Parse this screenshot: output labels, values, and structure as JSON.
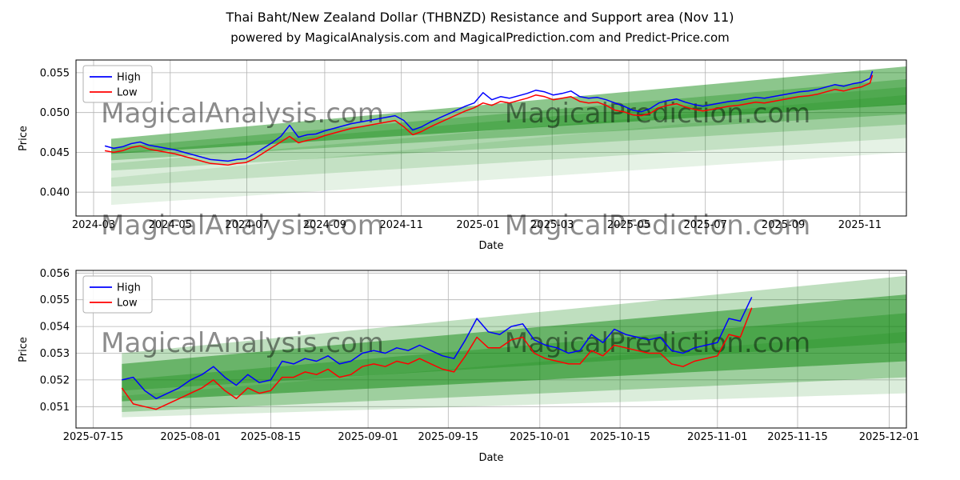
{
  "header": {
    "title": "Thai Baht/New Zealand Dollar (THBNZD) Resistance and Support area (Nov 11)",
    "subtitle": "powered by MagicalAnalysis.com and MagicalPrediction.com and Predict-Price.com"
  },
  "colors": {
    "high": "#0000ff",
    "low": "#ff0000",
    "band": "#008000",
    "grid": "#b3b3b3",
    "watermark": "#8a8a8a",
    "plot_border": "#000000"
  },
  "chart_data": [
    {
      "type": "line",
      "xlabel": "Date",
      "ylabel": "Price",
      "legend": [
        "High",
        "Low"
      ],
      "legend_position": "upper left",
      "grid": true,
      "xlim": [
        "2024-02-16",
        "2025-12-08"
      ],
      "ylim": [
        0.037,
        0.0566
      ],
      "yticks": [
        {
          "v": 0.04,
          "label": "0.040"
        },
        {
          "v": 0.045,
          "label": "0.045"
        },
        {
          "v": 0.05,
          "label": "0.050"
        },
        {
          "v": 0.055,
          "label": "0.055"
        }
      ],
      "xticks": [
        {
          "d": "2024-03-01",
          "label": "2024-03"
        },
        {
          "d": "2024-05-01",
          "label": "2024-05"
        },
        {
          "d": "2024-07-01",
          "label": "2024-07"
        },
        {
          "d": "2024-09-01",
          "label": "2024-09"
        },
        {
          "d": "2024-11-01",
          "label": "2024-11"
        },
        {
          "d": "2025-01-01",
          "label": "2025-01"
        },
        {
          "d": "2025-03-01",
          "label": "2025-03"
        },
        {
          "d": "2025-05-01",
          "label": "2025-05"
        },
        {
          "d": "2025-07-01",
          "label": "2025-07"
        },
        {
          "d": "2025-09-01",
          "label": "2025-09"
        },
        {
          "d": "2025-11-01",
          "label": "2025-11"
        }
      ],
      "x": [
        "2024-03-10",
        "2024-03-17",
        "2024-03-24",
        "2024-03-31",
        "2024-04-07",
        "2024-04-14",
        "2024-04-21",
        "2024-04-28",
        "2024-05-05",
        "2024-05-12",
        "2024-05-19",
        "2024-05-26",
        "2024-06-02",
        "2024-06-09",
        "2024-06-16",
        "2024-06-23",
        "2024-06-30",
        "2024-07-07",
        "2024-07-14",
        "2024-07-21",
        "2024-07-28",
        "2024-08-04",
        "2024-08-11",
        "2024-08-18",
        "2024-08-25",
        "2024-09-01",
        "2024-09-08",
        "2024-09-15",
        "2024-09-22",
        "2024-09-29",
        "2024-10-06",
        "2024-10-13",
        "2024-10-20",
        "2024-10-27",
        "2024-11-03",
        "2024-11-10",
        "2024-11-17",
        "2024-11-24",
        "2024-12-01",
        "2024-12-08",
        "2024-12-15",
        "2024-12-22",
        "2024-12-29",
        "2025-01-05",
        "2025-01-12",
        "2025-01-19",
        "2025-01-26",
        "2025-02-02",
        "2025-02-09",
        "2025-02-16",
        "2025-02-23",
        "2025-03-02",
        "2025-03-09",
        "2025-03-16",
        "2025-03-23",
        "2025-03-30",
        "2025-04-06",
        "2025-04-13",
        "2025-04-20",
        "2025-04-27",
        "2025-05-04",
        "2025-05-11",
        "2025-05-18",
        "2025-05-25",
        "2025-06-01",
        "2025-06-08",
        "2025-06-15",
        "2025-06-22",
        "2025-06-29",
        "2025-07-06",
        "2025-07-13",
        "2025-07-20",
        "2025-07-27",
        "2025-08-03",
        "2025-08-10",
        "2025-08-17",
        "2025-08-24",
        "2025-08-31",
        "2025-09-07",
        "2025-09-14",
        "2025-09-21",
        "2025-09-28",
        "2025-10-05",
        "2025-10-12",
        "2025-10-19",
        "2025-10-26",
        "2025-11-02",
        "2025-11-09",
        "2025-11-11"
      ],
      "series": [
        {
          "name": "High",
          "color": "#0000ff",
          "values": [
            0.0458,
            0.0455,
            0.0457,
            0.0461,
            0.0463,
            0.0459,
            0.0457,
            0.0455,
            0.0453,
            0.045,
            0.0447,
            0.0444,
            0.0441,
            0.044,
            0.0439,
            0.0441,
            0.0442,
            0.0448,
            0.0455,
            0.0462,
            0.047,
            0.0484,
            0.0469,
            0.0472,
            0.0473,
            0.0477,
            0.048,
            0.0483,
            0.0486,
            0.0488,
            0.049,
            0.0492,
            0.0494,
            0.0496,
            0.049,
            0.0478,
            0.0482,
            0.0488,
            0.0493,
            0.0498,
            0.0503,
            0.0508,
            0.0512,
            0.0525,
            0.0516,
            0.052,
            0.0518,
            0.0521,
            0.0524,
            0.0528,
            0.0526,
            0.0522,
            0.0524,
            0.0527,
            0.052,
            0.0518,
            0.0519,
            0.0516,
            0.0512,
            0.0508,
            0.0503,
            0.0501,
            0.0505,
            0.0512,
            0.0515,
            0.0517,
            0.0513,
            0.051,
            0.0508,
            0.051,
            0.0512,
            0.0514,
            0.0515,
            0.0517,
            0.0519,
            0.0518,
            0.052,
            0.0522,
            0.0524,
            0.0526,
            0.0527,
            0.0529,
            0.0532,
            0.0535,
            0.0533,
            0.0536,
            0.0538,
            0.0543,
            0.0552
          ]
        },
        {
          "name": "Low",
          "color": "#ff0000",
          "values": [
            0.0452,
            0.045,
            0.0452,
            0.0456,
            0.0458,
            0.0454,
            0.0452,
            0.045,
            0.0448,
            0.0445,
            0.0442,
            0.0439,
            0.0436,
            0.0435,
            0.0434,
            0.0436,
            0.0437,
            0.0442,
            0.0449,
            0.0456,
            0.0463,
            0.047,
            0.0462,
            0.0465,
            0.0467,
            0.0471,
            0.0474,
            0.0477,
            0.048,
            0.0482,
            0.0484,
            0.0486,
            0.0488,
            0.049,
            0.0482,
            0.0472,
            0.0476,
            0.0482,
            0.0487,
            0.0492,
            0.0497,
            0.0502,
            0.0506,
            0.0512,
            0.0509,
            0.0514,
            0.0512,
            0.0515,
            0.0518,
            0.0522,
            0.052,
            0.0516,
            0.0518,
            0.052,
            0.0514,
            0.0512,
            0.0513,
            0.0509,
            0.0503,
            0.0501,
            0.0497,
            0.0496,
            0.0499,
            0.0506,
            0.0509,
            0.0511,
            0.0507,
            0.0504,
            0.0502,
            0.0504,
            0.0506,
            0.0508,
            0.0509,
            0.0511,
            0.0513,
            0.0512,
            0.0514,
            0.0516,
            0.0518,
            0.052,
            0.0521,
            0.0523,
            0.0526,
            0.0529,
            0.0527,
            0.053,
            0.0532,
            0.0537,
            0.0547
          ]
        }
      ],
      "bands": [
        {
          "x0": "2024-03-15",
          "x1": "2025-12-08",
          "y0": [
            0.0448,
            0.0467
          ],
          "y1": [
            0.051,
            0.0558
          ],
          "opacity": 0.45
        },
        {
          "x0": "2024-03-15",
          "x1": "2025-12-08",
          "y0": [
            0.044,
            0.0456
          ],
          "y1": [
            0.0498,
            0.0542
          ],
          "opacity": 0.28
        },
        {
          "x0": "2024-03-15",
          "x1": "2025-12-08",
          "y0": [
            0.0427,
            0.0449
          ],
          "y1": [
            0.0485,
            0.0532
          ],
          "opacity": 0.2
        },
        {
          "x0": "2024-03-15",
          "x1": "2025-12-08",
          "y0": [
            0.0407,
            0.0436
          ],
          "y1": [
            0.0468,
            0.0522
          ],
          "opacity": 0.14
        },
        {
          "x0": "2024-03-15",
          "x1": "2025-12-08",
          "y0": [
            0.0384,
            0.0418
          ],
          "y1": [
            0.045,
            0.0512
          ],
          "opacity": 0.1
        }
      ],
      "watermarks": [
        {
          "text": "MagicalAnalysis.com",
          "x": 0.2,
          "y": 0.4
        },
        {
          "text": "MagicalPrediction.com",
          "x": 0.7,
          "y": 0.4
        },
        {
          "text": "MagicalAnalysis.com",
          "x": 0.2,
          "y": 1.12
        },
        {
          "text": "MagicalPrediction.com",
          "x": 0.7,
          "y": 1.12
        }
      ]
    },
    {
      "type": "line",
      "xlabel": "Date",
      "ylabel": "Price",
      "legend": [
        "High",
        "Low"
      ],
      "legend_position": "upper left",
      "grid": true,
      "xlim": [
        "2025-07-12",
        "2025-12-04"
      ],
      "ylim": [
        0.0502,
        0.0561
      ],
      "yticks": [
        {
          "v": 0.051,
          "label": "0.051"
        },
        {
          "v": 0.052,
          "label": "0.052"
        },
        {
          "v": 0.053,
          "label": "0.053"
        },
        {
          "v": 0.054,
          "label": "0.054"
        },
        {
          "v": 0.055,
          "label": "0.055"
        },
        {
          "v": 0.056,
          "label": "0.056"
        }
      ],
      "xticks": [
        {
          "d": "2025-07-15",
          "label": "2025-07-15"
        },
        {
          "d": "2025-08-01",
          "label": "2025-08-01"
        },
        {
          "d": "2025-08-15",
          "label": "2025-08-15"
        },
        {
          "d": "2025-09-01",
          "label": "2025-09-01"
        },
        {
          "d": "2025-09-15",
          "label": "2025-09-15"
        },
        {
          "d": "2025-10-01",
          "label": "2025-10-01"
        },
        {
          "d": "2025-10-15",
          "label": "2025-10-15"
        },
        {
          "d": "2025-11-01",
          "label": "2025-11-01"
        },
        {
          "d": "2025-11-15",
          "label": "2025-11-15"
        },
        {
          "d": "2025-12-01",
          "label": "2025-12-01"
        }
      ],
      "x": [
        "2025-07-20",
        "2025-07-22",
        "2025-07-24",
        "2025-07-26",
        "2025-07-28",
        "2025-07-30",
        "2025-08-01",
        "2025-08-03",
        "2025-08-05",
        "2025-08-07",
        "2025-08-09",
        "2025-08-11",
        "2025-08-13",
        "2025-08-15",
        "2025-08-17",
        "2025-08-19",
        "2025-08-21",
        "2025-08-23",
        "2025-08-25",
        "2025-08-27",
        "2025-08-29",
        "2025-08-31",
        "2025-09-02",
        "2025-09-04",
        "2025-09-06",
        "2025-09-08",
        "2025-09-10",
        "2025-09-12",
        "2025-09-14",
        "2025-09-16",
        "2025-09-18",
        "2025-09-20",
        "2025-09-22",
        "2025-09-24",
        "2025-09-26",
        "2025-09-28",
        "2025-09-30",
        "2025-10-02",
        "2025-10-04",
        "2025-10-06",
        "2025-10-08",
        "2025-10-10",
        "2025-10-12",
        "2025-10-14",
        "2025-10-16",
        "2025-10-18",
        "2025-10-20",
        "2025-10-22",
        "2025-10-24",
        "2025-10-26",
        "2025-10-28",
        "2025-10-30",
        "2025-11-01",
        "2025-11-03",
        "2025-11-05",
        "2025-11-07"
      ],
      "series": [
        {
          "name": "High",
          "color": "#0000ff",
          "values": [
            0.052,
            0.0521,
            0.0516,
            0.0513,
            0.0515,
            0.0517,
            0.052,
            0.0522,
            0.0525,
            0.0521,
            0.0518,
            0.0522,
            0.0519,
            0.052,
            0.0527,
            0.0526,
            0.0528,
            0.0527,
            0.0529,
            0.0526,
            0.0527,
            0.053,
            0.0531,
            0.053,
            0.0532,
            0.0531,
            0.0533,
            0.0531,
            0.0529,
            0.0528,
            0.0535,
            0.0543,
            0.0538,
            0.0537,
            0.054,
            0.0541,
            0.0535,
            0.0533,
            0.0532,
            0.053,
            0.0531,
            0.0537,
            0.0534,
            0.0539,
            0.0537,
            0.0536,
            0.0535,
            0.0536,
            0.0531,
            0.053,
            0.0532,
            0.0533,
            0.0534,
            0.0543,
            0.0542,
            0.0551
          ]
        },
        {
          "name": "Low",
          "color": "#ff0000",
          "values": [
            0.0517,
            0.0511,
            0.051,
            0.0509,
            0.0511,
            0.0513,
            0.0515,
            0.0517,
            0.052,
            0.0516,
            0.0513,
            0.0517,
            0.0515,
            0.0516,
            0.0521,
            0.0521,
            0.0523,
            0.0522,
            0.0524,
            0.0521,
            0.0522,
            0.0525,
            0.0526,
            0.0525,
            0.0527,
            0.0526,
            0.0528,
            0.0526,
            0.0524,
            0.0523,
            0.0529,
            0.0536,
            0.0532,
            0.0532,
            0.0535,
            0.0536,
            0.053,
            0.0528,
            0.0527,
            0.0526,
            0.0526,
            0.0531,
            0.0529,
            0.0533,
            0.0532,
            0.0531,
            0.053,
            0.053,
            0.0526,
            0.0525,
            0.0527,
            0.0528,
            0.0529,
            0.0537,
            0.0536,
            0.0547
          ]
        }
      ],
      "bands": [
        {
          "x0": "2025-07-20",
          "x1": "2025-12-04",
          "y0": [
            0.0512,
            0.0526
          ],
          "y1": [
            0.0527,
            0.0552
          ],
          "opacity": 0.45
        },
        {
          "x0": "2025-07-20",
          "x1": "2025-12-04",
          "y0": [
            0.0516,
            0.053
          ],
          "y1": [
            0.0534,
            0.0559
          ],
          "opacity": 0.25
        },
        {
          "x0": "2025-07-20",
          "x1": "2025-12-04",
          "y0": [
            0.0508,
            0.052
          ],
          "y1": [
            0.0521,
            0.0545
          ],
          "opacity": 0.28
        },
        {
          "x0": "2025-07-20",
          "x1": "2025-12-04",
          "y0": [
            0.0506,
            0.0514
          ],
          "y1": [
            0.0515,
            0.0538
          ],
          "opacity": 0.14
        }
      ],
      "watermarks": [
        {
          "text": "MagicalAnalysis.com",
          "x": 0.2,
          "y": 0.52
        },
        {
          "text": "MagicalPrediction.com",
          "x": 0.7,
          "y": 0.52
        }
      ]
    }
  ]
}
